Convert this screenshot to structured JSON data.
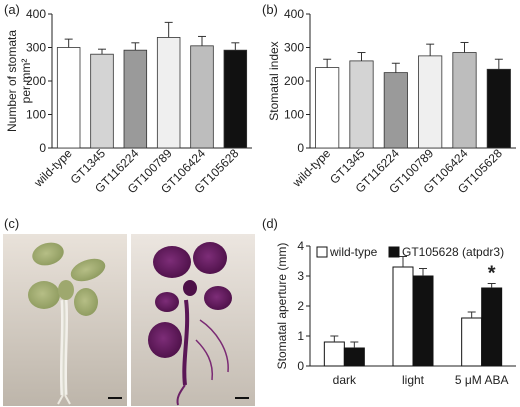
{
  "chart_data": [
    {
      "panel": "(a)",
      "type": "bar",
      "categories": [
        "wild-type",
        "GT1345",
        "GT116224",
        "GT100789",
        "GT106424",
        "GT105628"
      ],
      "values": [
        300,
        280,
        292,
        330,
        305,
        292
      ],
      "errors": [
        25,
        15,
        22,
        45,
        28,
        22
      ],
      "colors": [
        "#ffffff",
        "#d4d4d4",
        "#9a9a9a",
        "#efefef",
        "#bdbdbd",
        "#111111"
      ],
      "ylabel": "Number of stomata per mm²",
      "ylim": [
        0,
        400
      ],
      "yticks": [
        0,
        100,
        200,
        300,
        400
      ]
    },
    {
      "panel": "(b)",
      "type": "bar",
      "categories": [
        "wild-type",
        "GT1345",
        "GT116224",
        "GT100789",
        "GT106424",
        "GT105628"
      ],
      "values": [
        240,
        260,
        225,
        275,
        285,
        235
      ],
      "errors": [
        25,
        25,
        28,
        35,
        30,
        30
      ],
      "colors": [
        "#ffffff",
        "#d4d4d4",
        "#9a9a9a",
        "#efefef",
        "#bdbdbd",
        "#111111"
      ],
      "ylabel": "Stomatal index",
      "ylim": [
        0,
        400
      ],
      "yticks": [
        0,
        100,
        200,
        300,
        400
      ]
    },
    {
      "panel": "(d)",
      "type": "bar",
      "categories": [
        "dark",
        "light",
        "5 μM ABA"
      ],
      "series": [
        {
          "name": "wild-type",
          "values": [
            0.8,
            3.3,
            1.6
          ],
          "errors": [
            0.2,
            0.35,
            0.2
          ],
          "color": "#ffffff"
        },
        {
          "name": "GT105628 (atpdr3)",
          "values": [
            0.6,
            3.0,
            2.6
          ],
          "errors": [
            0.2,
            0.25,
            0.15
          ],
          "color": "#111111"
        }
      ],
      "annotations": [
        "*"
      ],
      "ylabel": "Stomatal aperture (mm)",
      "ylim": [
        0,
        4
      ],
      "yticks": [
        0,
        1,
        2,
        3,
        4
      ],
      "legend": "top"
    }
  ],
  "panel_c": {
    "label": "(c)",
    "photos": [
      "seedling-green",
      "seedling-purple"
    ]
  },
  "labels": {
    "a": "(a)",
    "b": "(b)",
    "c": "(c)",
    "d": "(d)"
  }
}
